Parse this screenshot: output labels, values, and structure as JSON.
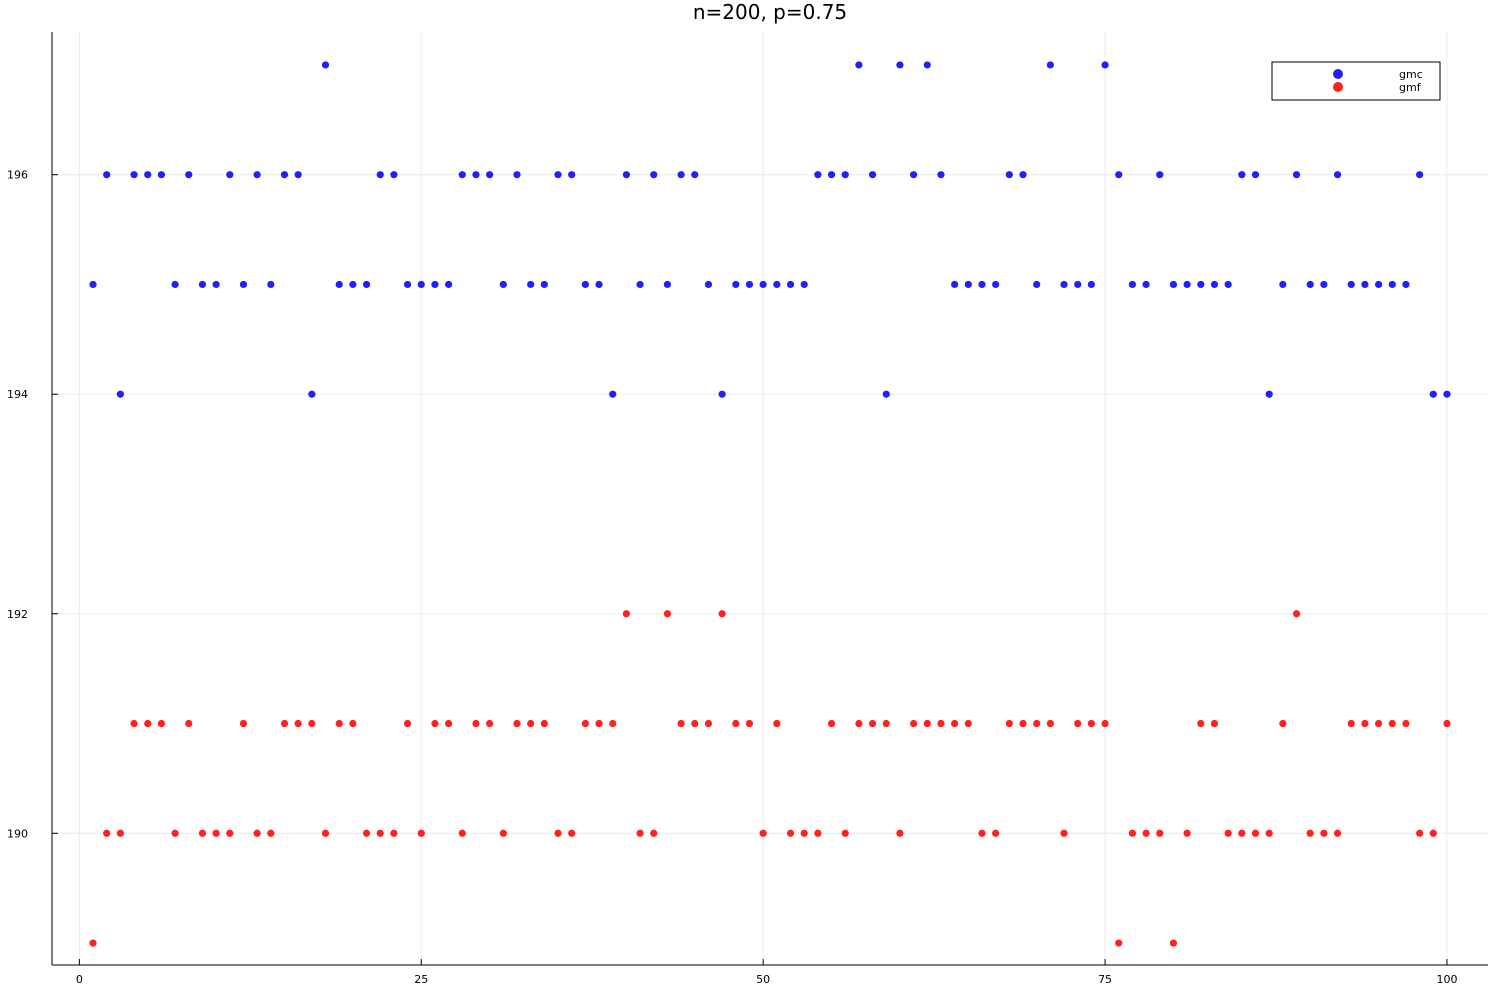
{
  "chart_data": {
    "type": "scatter",
    "title": "n=200, p=0.75",
    "xlabel": "",
    "ylabel": "",
    "xlim": [
      -2,
      103
    ],
    "ylim": [
      188.8,
      197.3
    ],
    "xticks": [
      0,
      25,
      50,
      75,
      100
    ],
    "yticks": [
      190,
      192,
      194,
      196
    ],
    "grid": true,
    "legend": "top-right",
    "x": [
      1,
      2,
      3,
      4,
      5,
      6,
      7,
      8,
      9,
      10,
      11,
      12,
      13,
      14,
      15,
      16,
      17,
      18,
      19,
      20,
      21,
      22,
      23,
      24,
      25,
      26,
      27,
      28,
      29,
      30,
      31,
      32,
      33,
      34,
      35,
      36,
      37,
      38,
      39,
      40,
      41,
      42,
      43,
      44,
      45,
      46,
      47,
      48,
      49,
      50,
      51,
      52,
      53,
      54,
      55,
      56,
      57,
      58,
      59,
      60,
      61,
      62,
      63,
      64,
      65,
      66,
      67,
      68,
      69,
      70,
      71,
      72,
      73,
      74,
      75,
      76,
      77,
      78,
      79,
      80,
      81,
      82,
      83,
      84,
      85,
      86,
      87,
      88,
      89,
      90,
      91,
      92,
      93,
      94,
      95,
      96,
      97,
      98,
      99,
      100
    ],
    "series": [
      {
        "name": "gmc",
        "color": "#2020ff",
        "values": [
          195,
          196,
          194,
          196,
          196,
          196,
          195,
          196,
          195,
          195,
          196,
          195,
          196,
          195,
          196,
          196,
          194,
          197,
          195,
          195,
          195,
          196,
          196,
          195,
          195,
          195,
          195,
          196,
          196,
          196,
          195,
          196,
          195,
          195,
          196,
          196,
          195,
          195,
          194,
          196,
          195,
          196,
          195,
          196,
          196,
          195,
          194,
          195,
          195,
          195,
          195,
          195,
          195,
          196,
          196,
          196,
          197,
          196,
          194,
          197,
          196,
          197,
          196,
          195,
          195,
          195,
          195,
          196,
          196,
          195,
          197,
          195,
          195,
          195,
          197,
          196,
          195,
          195,
          196,
          195,
          195,
          195,
          195,
          195,
          196,
          196,
          194,
          195,
          196,
          195,
          195,
          196,
          195,
          195,
          195,
          195,
          195,
          196,
          194,
          194
        ]
      },
      {
        "name": "gmf",
        "color": "#ff2020",
        "values": [
          189,
          190,
          190,
          191,
          191,
          191,
          190,
          191,
          190,
          190,
          190,
          191,
          190,
          190,
          191,
          191,
          191,
          190,
          191,
          191,
          190,
          190,
          190,
          191,
          190,
          191,
          191,
          190,
          191,
          191,
          190,
          191,
          191,
          191,
          190,
          190,
          191,
          191,
          191,
          192,
          190,
          190,
          192,
          191,
          191,
          191,
          192,
          191,
          191,
          190,
          191,
          190,
          190,
          190,
          191,
          190,
          191,
          191,
          191,
          190,
          191,
          191,
          191,
          191,
          191,
          190,
          190,
          191,
          191,
          191,
          191,
          190,
          191,
          191,
          191,
          189,
          190,
          190,
          190,
          189,
          190,
          191,
          191,
          190,
          190,
          190,
          190,
          191,
          192,
          190,
          190,
          190,
          191,
          191,
          191,
          191,
          191,
          190,
          190,
          191
        ]
      }
    ]
  }
}
